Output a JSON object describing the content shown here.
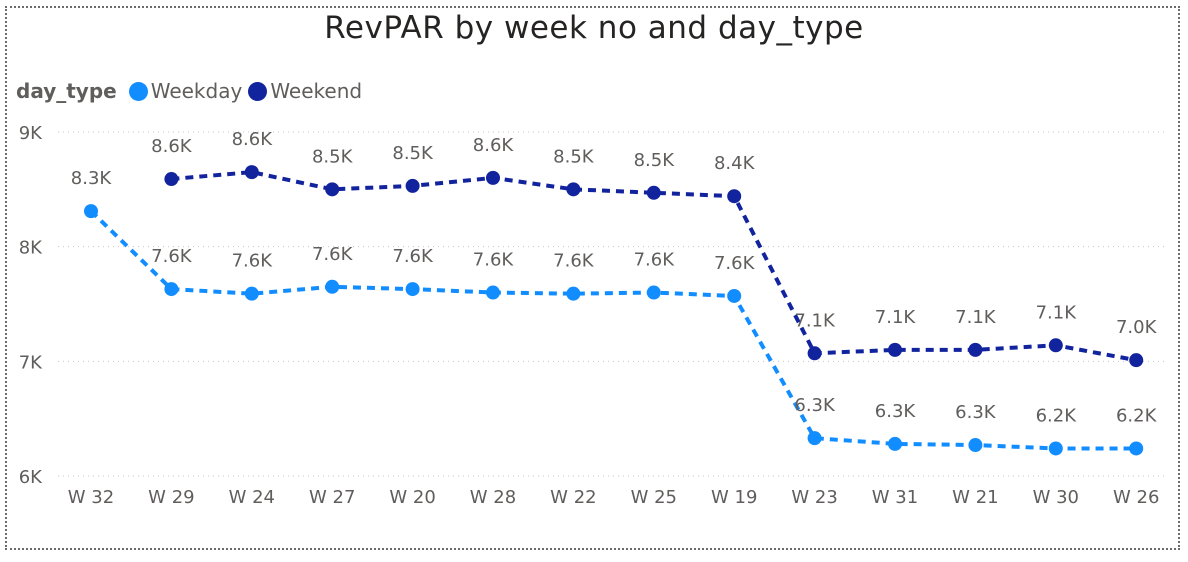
{
  "chart_data": {
    "type": "line",
    "title": "RevPAR by week no and day_type",
    "legend_title": "day_type",
    "categories": [
      "W 32",
      "W 29",
      "W 24",
      "W 27",
      "W 20",
      "W 28",
      "W 22",
      "W 25",
      "W 19",
      "W 23",
      "W 31",
      "W 21",
      "W 30",
      "W 26"
    ],
    "y_ticks": [
      "9K",
      "8K",
      "7K",
      "6K"
    ],
    "y_tick_values": [
      9000,
      8000,
      7000,
      6000
    ],
    "ylim": [
      6000,
      9000
    ],
    "grid": true,
    "legend_position": "top-left",
    "series": [
      {
        "name": "Weekday",
        "color": "#118DFF",
        "values": [
          8310,
          7630,
          7590,
          7650,
          7630,
          7600,
          7590,
          7600,
          7570,
          6330,
          6280,
          6270,
          6240,
          6240
        ],
        "labels": [
          "8.3K",
          "7.6K",
          "7.6K",
          "7.6K",
          "7.6K",
          "7.6K",
          "7.6K",
          "7.6K",
          "7.6K",
          "6.3K",
          "6.3K",
          "6.3K",
          "6.2K",
          "6.2K"
        ]
      },
      {
        "name": "Weekend",
        "color": "#12239E",
        "values": [
          null,
          8590,
          8650,
          8500,
          8530,
          8600,
          8500,
          8470,
          8440,
          7070,
          7100,
          7100,
          7140,
          7010
        ],
        "labels": [
          "",
          "8.6K",
          "8.6K",
          "8.5K",
          "8.5K",
          "8.6K",
          "8.5K",
          "8.5K",
          "8.4K",
          "7.1K",
          "7.1K",
          "7.1K",
          "7.1K",
          "7.0K"
        ]
      }
    ]
  }
}
